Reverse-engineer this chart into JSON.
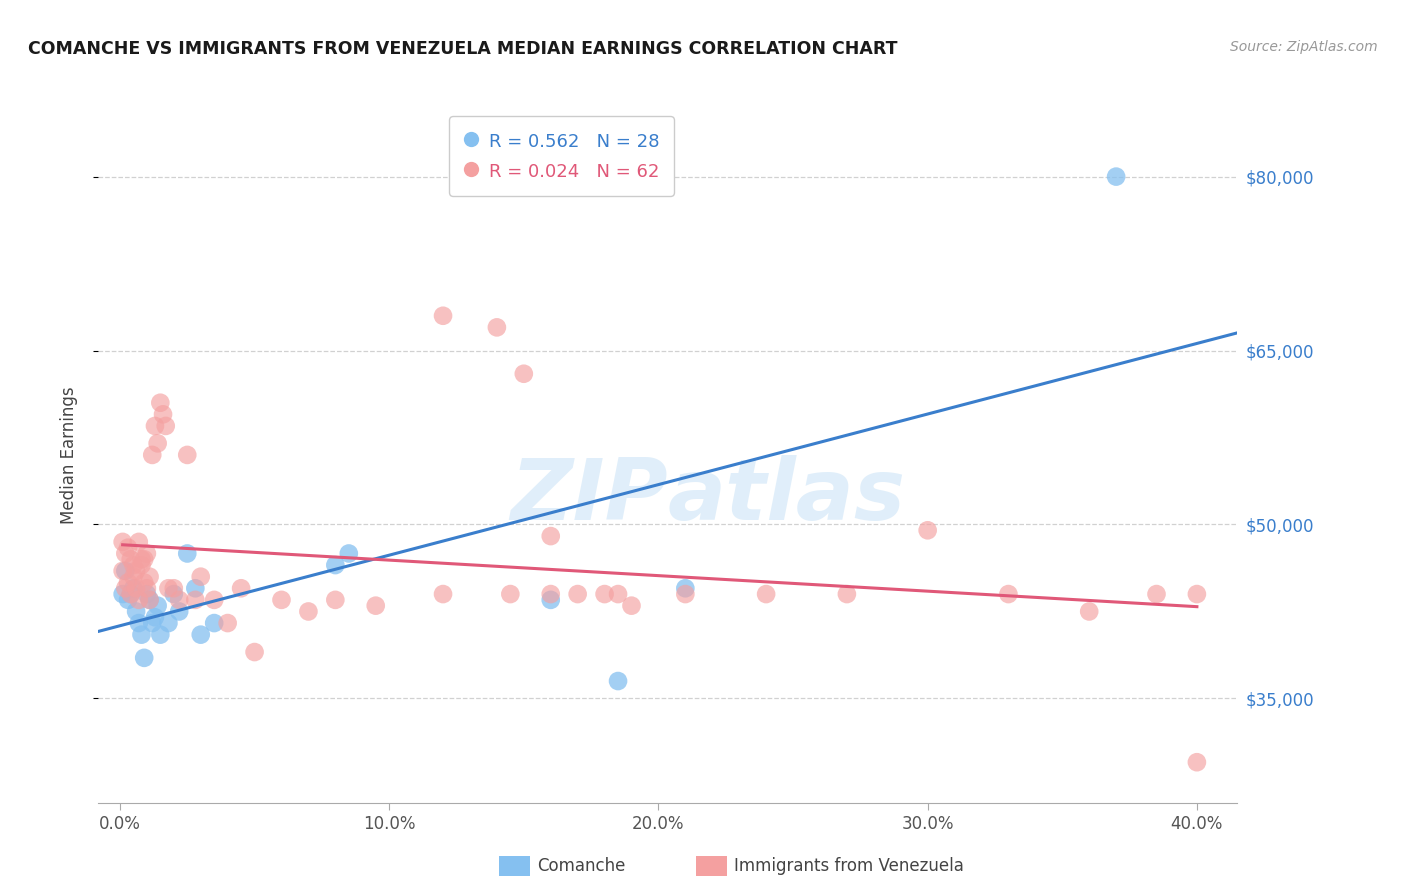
{
  "title": "COMANCHE VS IMMIGRANTS FROM VENEZUELA MEDIAN EARNINGS CORRELATION CHART",
  "source": "Source: ZipAtlas.com",
  "ylabel": "Median Earnings",
  "xlabel_ticks": [
    "0.0%",
    "10.0%",
    "20.0%",
    "30.0%",
    "40.0%"
  ],
  "xlabel_tick_vals": [
    0.0,
    0.1,
    0.2,
    0.3,
    0.4
  ],
  "ytick_labels": [
    "$35,000",
    "$50,000",
    "$65,000",
    "$80,000"
  ],
  "ytick_vals": [
    35000,
    50000,
    65000,
    80000
  ],
  "watermark_zip": "ZIP",
  "watermark_atlas": "atlas",
  "legend_blue_r": "R = 0.562",
  "legend_blue_n": "N = 28",
  "legend_pink_r": "R = 0.024",
  "legend_pink_n": "N = 62",
  "legend_label_blue": "Comanche",
  "legend_label_pink": "Immigrants from Venezuela",
  "blue_color": "#85c0f0",
  "pink_color": "#f4a0a0",
  "blue_line_color": "#3a7ecc",
  "pink_line_color": "#e05878",
  "xlim": [
    -0.008,
    0.415
  ],
  "ylim": [
    26000,
    86000
  ],
  "blue_x": [
    0.001,
    0.002,
    0.003,
    0.004,
    0.005,
    0.006,
    0.007,
    0.008,
    0.009,
    0.01,
    0.011,
    0.012,
    0.013,
    0.014,
    0.015,
    0.018,
    0.02,
    0.022,
    0.025,
    0.028,
    0.03,
    0.035,
    0.08,
    0.085,
    0.16,
    0.185,
    0.21,
    0.37
  ],
  "blue_y": [
    44000,
    46000,
    43500,
    44000,
    44500,
    42500,
    41500,
    40500,
    38500,
    44000,
    43500,
    41500,
    42000,
    43000,
    40500,
    41500,
    44000,
    42500,
    47500,
    44500,
    40500,
    41500,
    46500,
    47500,
    43500,
    36500,
    44500,
    80000
  ],
  "pink_x": [
    0.001,
    0.001,
    0.002,
    0.002,
    0.003,
    0.003,
    0.004,
    0.004,
    0.005,
    0.005,
    0.006,
    0.006,
    0.007,
    0.007,
    0.008,
    0.008,
    0.009,
    0.009,
    0.01,
    0.01,
    0.011,
    0.011,
    0.012,
    0.013,
    0.014,
    0.015,
    0.016,
    0.017,
    0.018,
    0.02,
    0.022,
    0.025,
    0.028,
    0.03,
    0.035,
    0.04,
    0.045,
    0.05,
    0.06,
    0.07,
    0.08,
    0.095,
    0.12,
    0.145,
    0.16,
    0.185,
    0.21,
    0.24,
    0.27,
    0.3,
    0.33,
    0.36,
    0.385,
    0.4,
    0.12,
    0.14,
    0.15,
    0.16,
    0.17,
    0.18,
    0.19,
    0.4
  ],
  "pink_y": [
    48500,
    46000,
    47500,
    44500,
    48000,
    45000,
    47000,
    44000,
    46500,
    45500,
    44500,
    46000,
    48500,
    43500,
    47000,
    46500,
    45000,
    47000,
    44500,
    47500,
    43500,
    45500,
    56000,
    58500,
    57000,
    60500,
    59500,
    58500,
    44500,
    44500,
    43500,
    56000,
    43500,
    45500,
    43500,
    41500,
    44500,
    39000,
    43500,
    42500,
    43500,
    43000,
    44000,
    44000,
    44000,
    44000,
    44000,
    44000,
    44000,
    49500,
    44000,
    42500,
    44000,
    44000,
    68000,
    67000,
    63000,
    49000,
    44000,
    44000,
    43000,
    29500
  ]
}
